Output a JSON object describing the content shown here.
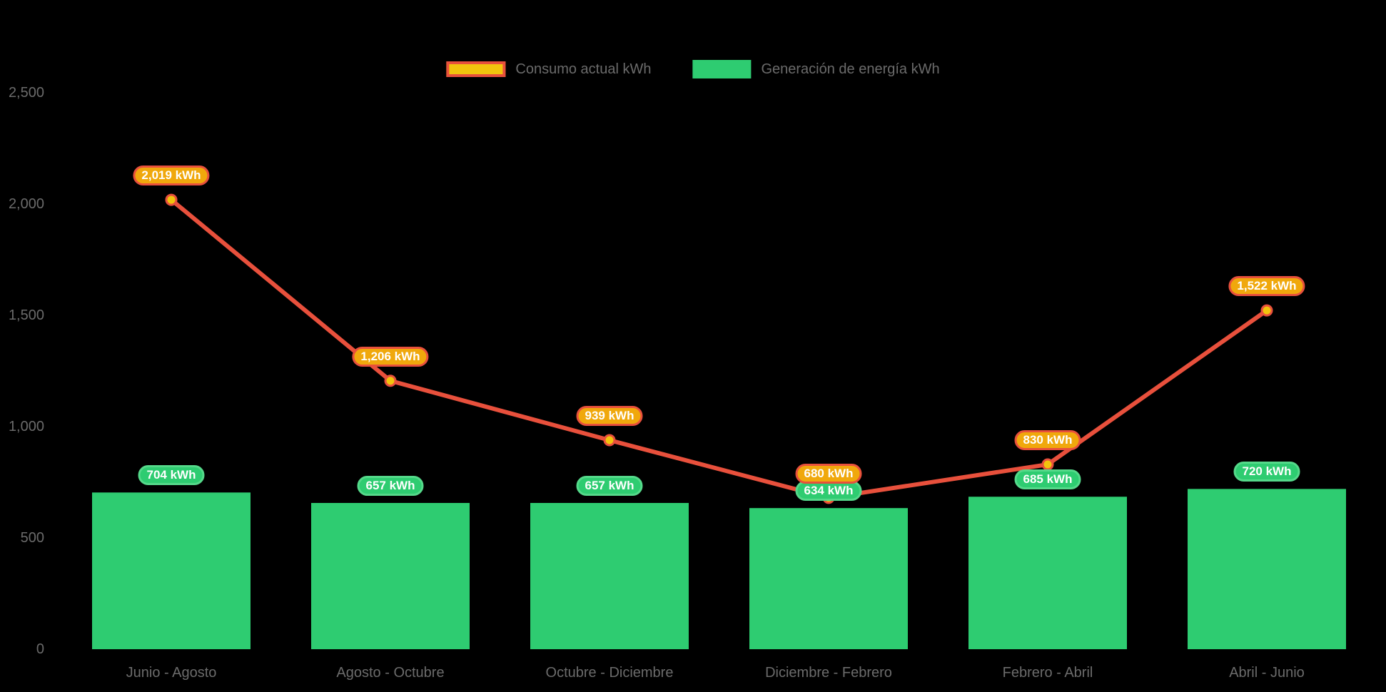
{
  "chart_data": {
    "type": "bar+line combo",
    "categories": [
      "Junio - Agosto",
      "Agosto - Octubre",
      "Octubre - Diciembre",
      "Diciembre - Febrero",
      "Febrero - Abril",
      "Abril - Junio"
    ],
    "series": [
      {
        "name": "Consumo actual kWh",
        "type": "line",
        "values": [
          2019,
          1206,
          939,
          680,
          830,
          1522
        ],
        "point_labels": [
          "2,019 kWh",
          "1,206 kWh",
          "939 kWh",
          "680 kWh",
          "830 kWh",
          "1,522 kWh"
        ],
        "line_color": "#E8503C",
        "point_fill": "#F2C40D",
        "label_bg": "#F0A80C",
        "label_border": "#E8503C",
        "label_text_color": "#FFFFFF"
      },
      {
        "name": "Generación de energía kWh",
        "type": "bar",
        "values": [
          704,
          657,
          657,
          634,
          685,
          720
        ],
        "point_labels": [
          "704 kWh",
          "657 kWh",
          "657 kWh",
          "634 kWh",
          "685 kWh",
          "720 kWh"
        ],
        "bar_color": "#2ECC71",
        "label_bg": "#2ECC71",
        "label_border": "#55D98A",
        "label_text_color": "#FFFFFF"
      }
    ],
    "y_ticks": [
      "0",
      "500",
      "1,000",
      "1,500",
      "2,000",
      "2,500"
    ],
    "y_tick_values": [
      0,
      500,
      1000,
      1500,
      2000,
      2500
    ],
    "ylim": [
      0,
      2500
    ],
    "grid": false,
    "legend_position": "top",
    "background_color": "#000000",
    "axis_text_color": "#6B6B6B"
  }
}
